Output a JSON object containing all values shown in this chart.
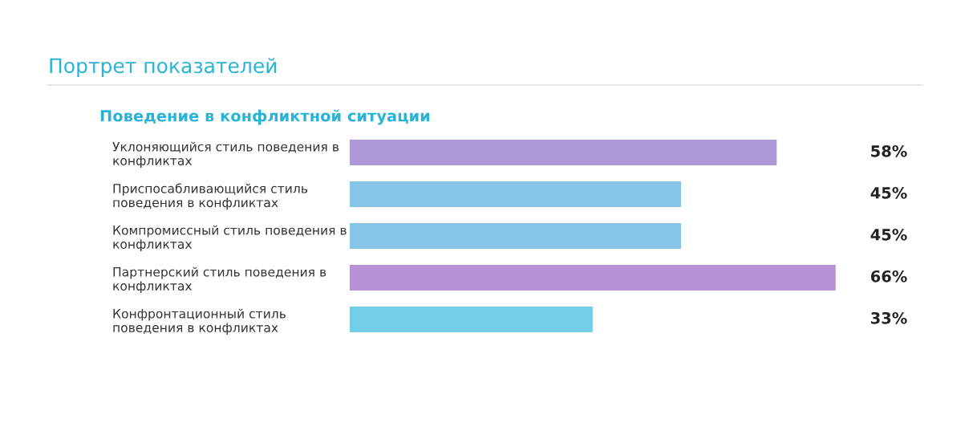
{
  "chart_data": {
    "type": "bar",
    "orientation": "horizontal",
    "title": "Портрет показателей",
    "subtitle": "Поведение в конфликтной ситуации",
    "categories": [
      "Уклоняющийся стиль поведения в\nконфликтах",
      "Приспосабливающийся стиль\nповедения в конфликтах",
      "Компромиссный стиль поведения в\nконфликтах",
      "Партнерский стиль поведения в\nконфликтах",
      "Конфронтационный стиль\nповедения в конфликтах"
    ],
    "values": [
      58,
      45,
      45,
      66,
      33
    ],
    "colors": [
      "#ad99d6",
      "#85c5e8",
      "#85c5e8",
      "#b592d4",
      "#72cde6"
    ],
    "value_labels": [
      "58%",
      "45%",
      "45%",
      "66%",
      "33%"
    ],
    "tick_labels": "y",
    "grid": false,
    "legend": false
  }
}
